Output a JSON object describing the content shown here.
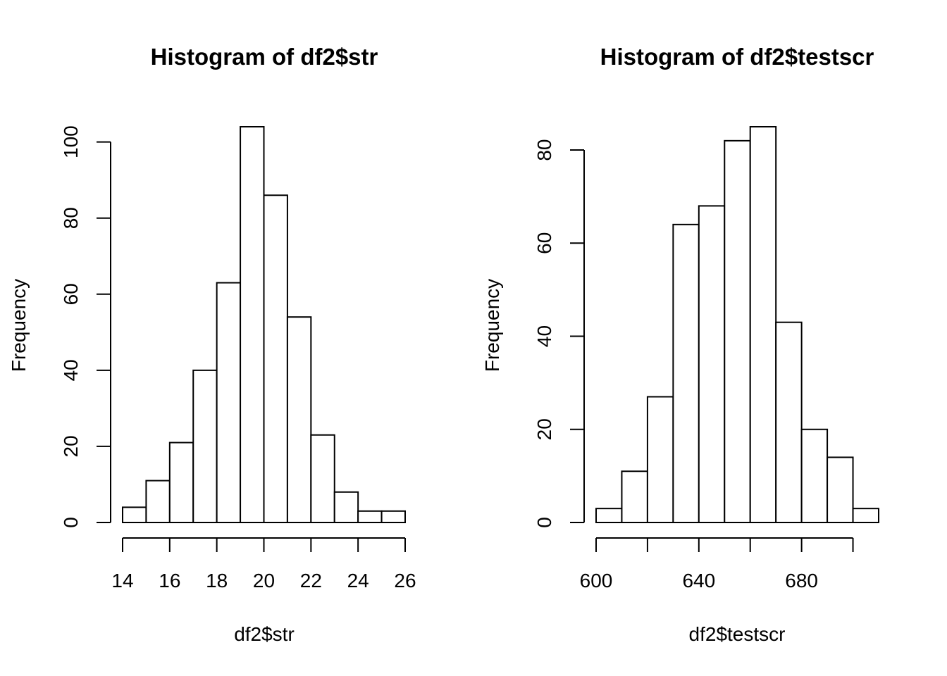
{
  "chart_data": [
    {
      "type": "bar",
      "title": "Histogram of df2$str",
      "xlabel": "df2$str",
      "ylabel": "Frequency",
      "bin_edges": [
        14,
        15,
        16,
        17,
        18,
        19,
        20,
        21,
        22,
        23,
        24,
        25,
        26
      ],
      "values": [
        4,
        11,
        21,
        40,
        63,
        104,
        86,
        54,
        23,
        8,
        3,
        3
      ],
      "xlim": [
        14,
        26
      ],
      "ylim": [
        0,
        104
      ],
      "x_ticks": [
        14,
        16,
        18,
        20,
        22,
        24,
        26
      ],
      "y_ticks": [
        0,
        20,
        40,
        60,
        80,
        100
      ],
      "grid": false
    },
    {
      "type": "bar",
      "title": "Histogram of df2$testscr",
      "xlabel": "df2$testscr",
      "ylabel": "Frequency",
      "bin_edges": [
        600,
        610,
        620,
        630,
        640,
        650,
        660,
        670,
        680,
        690,
        700,
        710
      ],
      "values": [
        3,
        11,
        27,
        64,
        68,
        82,
        85,
        43,
        20,
        14,
        3
      ],
      "xlim": [
        600,
        710
      ],
      "ylim": [
        0,
        85
      ],
      "x_ticks": [
        600,
        620,
        640,
        660,
        680,
        700
      ],
      "x_tick_labels": [
        "600",
        "",
        "640",
        "",
        "680",
        ""
      ],
      "y_ticks": [
        0,
        20,
        40,
        60,
        80
      ],
      "grid": false
    }
  ]
}
